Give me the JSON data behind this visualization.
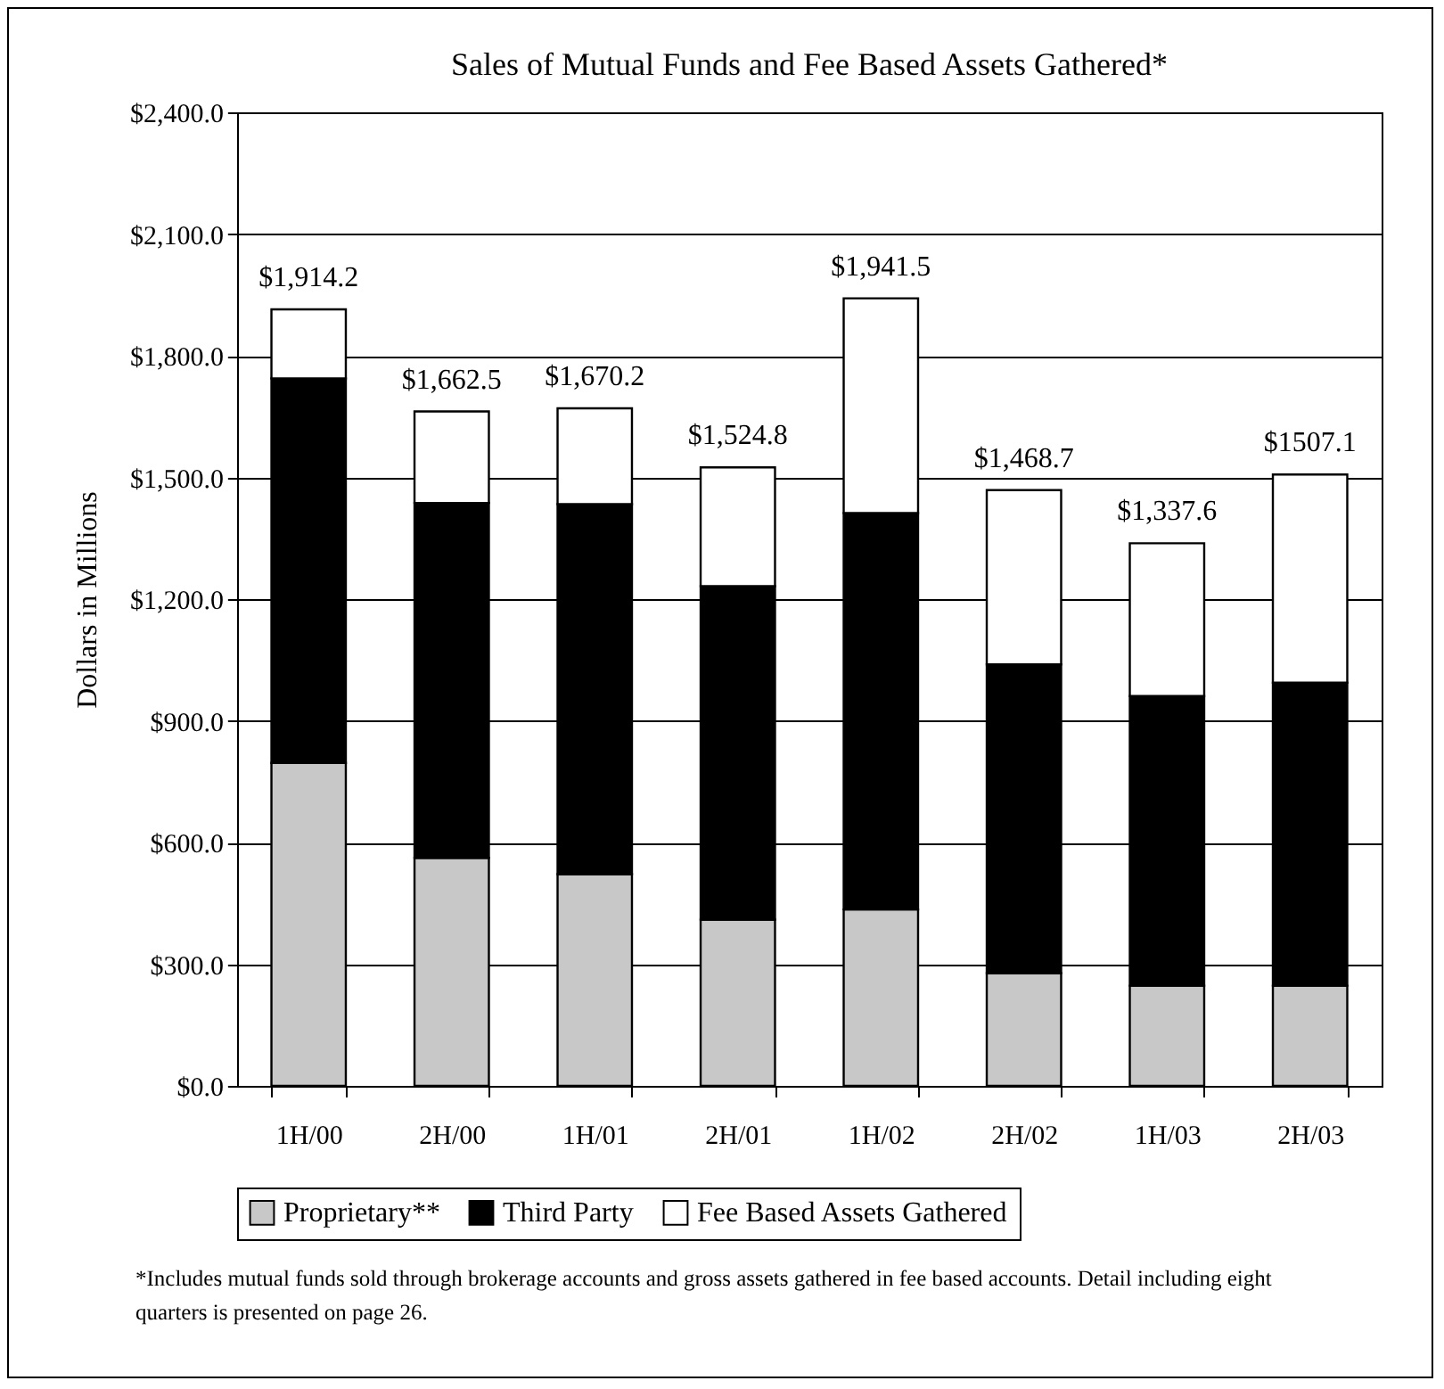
{
  "chart_data": {
    "type": "bar",
    "title": "Sales of Mutual Funds and Fee Based Assets Gathered*",
    "ylabel": "Dollars in Millions",
    "categories": [
      "1H/00",
      "2H/00",
      "1H/01",
      "2H/01",
      "1H/02",
      "2H/02",
      "1H/03",
      "2H/03"
    ],
    "stacked": true,
    "series": [
      {
        "name": "Proprietary**",
        "color": "#c8c8c8",
        "values": [
          796,
          562,
          522,
          410,
          435,
          278,
          247,
          247
        ]
      },
      {
        "name": "Third Party",
        "color": "#000000",
        "values": [
          948,
          875,
          912,
          822,
          977,
          761,
          714,
          747
        ]
      },
      {
        "name": "Fee Based Assets Gathered",
        "color": "#ffffff",
        "values": [
          170.2,
          225.5,
          236.2,
          292.8,
          529.5,
          429.7,
          376.6,
          513.1
        ]
      }
    ],
    "totals": [
      "$1,914.2",
      "$1,662.5",
      "$1,670.2",
      "$1,524.8",
      "$1,941.5",
      "$1,468.7",
      "$1,337.6",
      "$1507.1"
    ],
    "ylim": [
      0,
      2400
    ],
    "yticks": [
      {
        "value": 0,
        "label": "$0.0"
      },
      {
        "value": 300,
        "label": "$300.0"
      },
      {
        "value": 600,
        "label": "$600.0"
      },
      {
        "value": 900,
        "label": "$900.0"
      },
      {
        "value": 1200,
        "label": "$1,200.0"
      },
      {
        "value": 1500,
        "label": "$1,500.0"
      },
      {
        "value": 1800,
        "label": "$1,800.0"
      },
      {
        "value": 2100,
        "label": "$2,100.0"
      },
      {
        "value": 2400,
        "label": "$2,400.0"
      }
    ],
    "grid": "y",
    "legend": "bottom",
    "annotations": [
      "*Includes mutual funds sold through brokerage accounts and gross assets gathered in fee based accounts. Detail including eight quarters is presented on page 26."
    ]
  }
}
